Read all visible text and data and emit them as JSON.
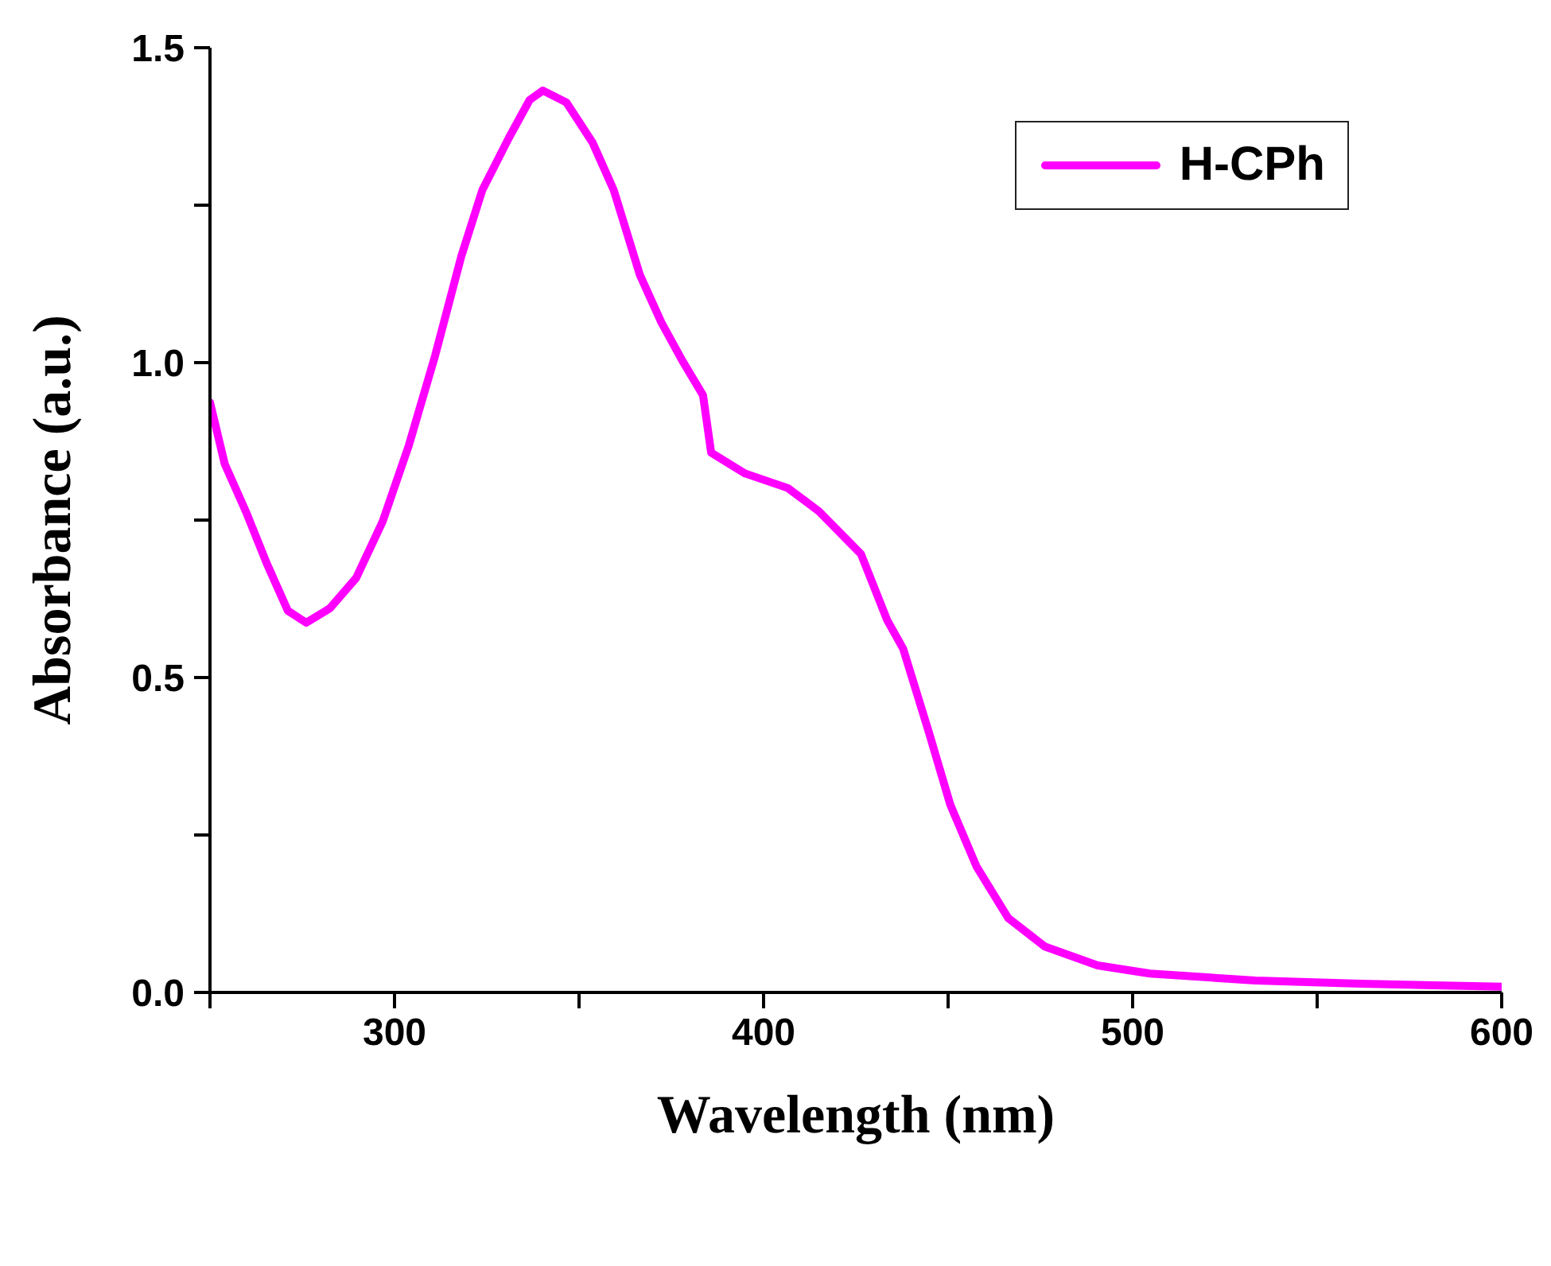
{
  "chart_data": {
    "type": "line",
    "xlabel": "Wavelength (nm)",
    "ylabel": "Absorbance (a.u.)",
    "xlim": [
      250,
      600
    ],
    "ylim": [
      0,
      1.5
    ],
    "xticks": [
      {
        "value": 250,
        "label": null
      },
      300,
      {
        "value": 350,
        "label": null
      },
      400,
      {
        "value": 450,
        "label": null
      },
      500,
      {
        "value": 550,
        "label": null
      },
      600
    ],
    "yticks": [
      {
        "value": 0,
        "label": "0.0"
      },
      {
        "value": 0.25,
        "label": null
      },
      {
        "value": 0.5,
        "label": "0.5"
      },
      {
        "value": 0.75,
        "label": null
      },
      {
        "value": 1,
        "label": "1.0"
      },
      {
        "value": 1.25,
        "label": null
      },
      {
        "value": 1.5,
        "label": "1.5"
      }
    ],
    "grid": false,
    "legend": "top right",
    "marker": "none",
    "line_style": "solid",
    "series": [
      {
        "name": "H-CPh",
        "color": "#ff00ff",
        "x": [
          250,
          254,
          259.7,
          265.4,
          271.1,
          276.1,
          282.5,
          289.6,
          296.8,
          303.9,
          311,
          318.1,
          323.8,
          331,
          336.6,
          340.2,
          346.6,
          353.7,
          359.4,
          366.5,
          372.3,
          378,
          383.6,
          385.8,
          395,
          406.5,
          415,
          426.4,
          433.5,
          437.8,
          444.9,
          450.6,
          457.7,
          466.3,
          476.2,
          490.5,
          504.7,
          533.2,
          561.7,
          600
        ],
        "values": [
          0.937,
          0.839,
          0.764,
          0.681,
          0.606,
          0.587,
          0.61,
          0.658,
          0.748,
          0.869,
          1.011,
          1.169,
          1.274,
          1.357,
          1.417,
          1.432,
          1.413,
          1.349,
          1.274,
          1.139,
          1.064,
          1.003,
          0.948,
          0.857,
          0.824,
          0.801,
          0.764,
          0.696,
          0.591,
          0.546,
          0.411,
          0.298,
          0.2,
          0.118,
          0.073,
          0.043,
          0.03,
          0.019,
          0.014,
          0.009
        ]
      }
    ]
  }
}
